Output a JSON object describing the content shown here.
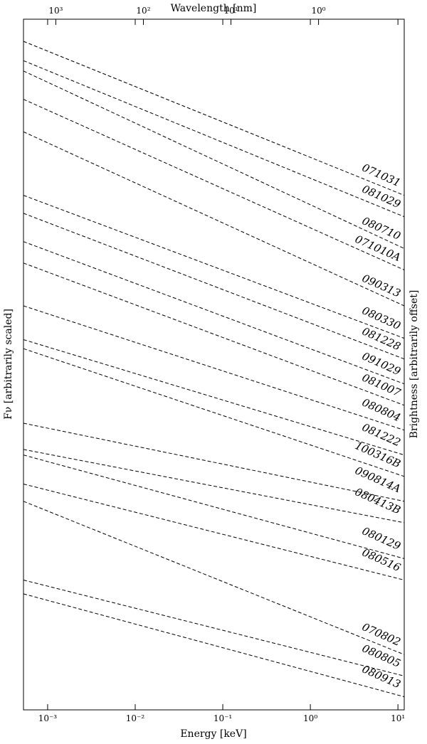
{
  "chart_data": {
    "type": "line",
    "x_label": "Energy [keV]",
    "x2_label": "Wavelength [nm]",
    "y_label": "Fν [arbitrarily scaled]",
    "y2_label": "Brightness [arbitrarily offset]",
    "xscale": "log",
    "xlim": [
      0.00053,
      11.8
    ],
    "xticks": [
      {
        "value": 0.001,
        "label": "10⁻³"
      },
      {
        "value": 0.01,
        "label": "10⁻²"
      },
      {
        "value": 0.1,
        "label": "10⁻¹"
      },
      {
        "value": 1,
        "label": "10⁰"
      },
      {
        "value": 10,
        "label": "10¹"
      }
    ],
    "x2ticks": [
      {
        "value": 1000,
        "label": "10³"
      },
      {
        "value": 100,
        "label": "10²"
      },
      {
        "value": 10,
        "label": "10¹"
      },
      {
        "value": 1,
        "label": "10⁰"
      }
    ],
    "ylim": [
      0,
      100
    ],
    "linestyle": "dashed",
    "series": [
      {
        "name": "071031",
        "color": "#000000",
        "x": [
          0.00053,
          11.8
        ],
        "values": [
          96.8,
          74.5
        ]
      },
      {
        "name": "081029",
        "color": "#000000",
        "x": [
          0.00053,
          11.8
        ],
        "values": [
          94.0,
          71.4
        ]
      },
      {
        "name": "080710",
        "color": "#000000",
        "x": [
          0.00053,
          11.8
        ],
        "values": [
          92.5,
          66.8
        ]
      },
      {
        "name": "071010A",
        "color": "#000000",
        "x": [
          0.00053,
          11.8
        ],
        "values": [
          88.4,
          63.7
        ]
      },
      {
        "name": "090313",
        "color": "#000000",
        "x": [
          0.00053,
          11.8
        ],
        "values": [
          83.7,
          58.5
        ]
      },
      {
        "name": "080330",
        "color": "#000000",
        "x": [
          0.00053,
          11.8
        ],
        "values": [
          74.5,
          53.8
        ]
      },
      {
        "name": "081228",
        "color": "#000000",
        "x": [
          0.00053,
          11.8
        ],
        "values": [
          71.9,
          50.8
        ]
      },
      {
        "name": "091029",
        "color": "#000000",
        "x": [
          0.00053,
          11.8
        ],
        "values": [
          67.8,
          47.2
        ]
      },
      {
        "name": "081007",
        "color": "#000000",
        "x": [
          0.00053,
          11.8
        ],
        "values": [
          64.7,
          44.1
        ]
      },
      {
        "name": "080804",
        "color": "#000000",
        "x": [
          0.00053,
          11.8
        ],
        "values": [
          58.5,
          40.5
        ]
      },
      {
        "name": "081222",
        "color": "#000000",
        "x": [
          0.00053,
          11.8
        ],
        "values": [
          53.6,
          36.9
        ]
      },
      {
        "name": "100316B",
        "color": "#000000",
        "x": [
          0.00053,
          11.8
        ],
        "values": [
          52.3,
          33.8
        ]
      },
      {
        "name": "090814A",
        "color": "#000000",
        "x": [
          0.00053,
          11.8
        ],
        "values": [
          41.5,
          30.2
        ]
      },
      {
        "name": "080413B",
        "color": "#000000",
        "x": [
          0.00053,
          11.8
        ],
        "values": [
          37.7,
          27.1
        ]
      },
      {
        "name": "080129",
        "color": "#000000",
        "x": [
          0.00053,
          11.8
        ],
        "values": [
          36.9,
          21.9
        ]
      },
      {
        "name": "080516",
        "color": "#000000",
        "x": [
          0.00053,
          11.8
        ],
        "values": [
          32.7,
          18.8
        ]
      },
      {
        "name": "070802",
        "color": "#000000",
        "x": [
          0.00053,
          11.8
        ],
        "values": [
          30.2,
          8.0
        ]
      },
      {
        "name": "080805",
        "color": "#000000",
        "x": [
          0.00053,
          11.8
        ],
        "values": [
          18.8,
          4.9
        ]
      },
      {
        "name": "080913",
        "color": "#000000",
        "x": [
          0.00053,
          11.8
        ],
        "values": [
          16.8,
          1.9
        ]
      }
    ]
  }
}
